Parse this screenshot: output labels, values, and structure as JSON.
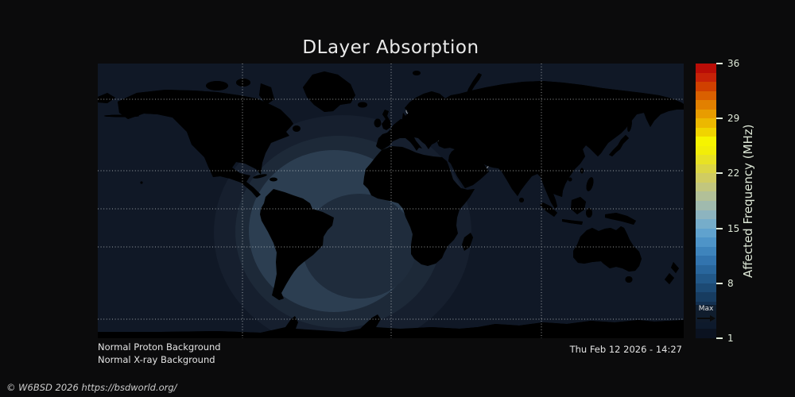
{
  "title": "DLayer Absorption",
  "colorbar": {
    "label": "Affected Frequency (MHz)",
    "ticks": [
      36,
      29,
      22,
      15,
      8,
      1
    ],
    "min": 1,
    "max": 36,
    "max_marker_label": "Max",
    "max_marker_value": 3.6,
    "colors_bottom_to_top": [
      "#0b1220",
      "#0e1a2c",
      "#102438",
      "#133050",
      "#173c60",
      "#1c4a74",
      "#225888",
      "#29669c",
      "#3274ae",
      "#3e84bc",
      "#4e94c8",
      "#60a2ce",
      "#76adca",
      "#8db4bf",
      "#a0baae",
      "#b2c098",
      "#c2c67e",
      "#d0cc62",
      "#dcd644",
      "#e8e224",
      "#f2ee08",
      "#f6f400",
      "#f0d400",
      "#ecb800",
      "#e89c00",
      "#e28000",
      "#da6000",
      "#d04000",
      "#c62208",
      "#b90d07"
    ]
  },
  "map_colors": {
    "ocean_night": "#101826",
    "land": "#5e490e",
    "coastline": "#a7acae",
    "twilight_outer": "#161f2e",
    "twilight_mid": "#1d2938",
    "absorption_ring": "#2c3e51",
    "absorption_core": "#1f2c3c"
  },
  "status": {
    "proton": "Normal Proton Background",
    "xray": "Normal X-ray Background"
  },
  "timestamp": "Thu Feb 12 2026 - 14:27",
  "copyright": "© W6BSD 2026 https://bsdworld.org/",
  "chart_data": {
    "type": "heatmap",
    "title": "DLayer Absorption",
    "colorbar_label": "Affected Frequency (MHz)",
    "colorbar_ticks": [
      1,
      8,
      15,
      22,
      29,
      36
    ],
    "colorbar_range": [
      1,
      36
    ],
    "max_affected_frequency_mhz": 3.6,
    "annotations": [
      "Normal Proton Background",
      "Normal X-ray Background",
      "Thu Feb 12 2026 - 14:27"
    ],
    "description_visible": "World map; sunlit absorption region centered over the South Atlantic, night side elsewhere"
  }
}
